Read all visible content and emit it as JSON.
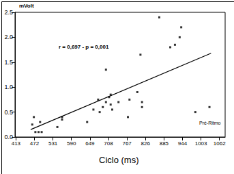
{
  "chart_data": {
    "type": "scatter",
    "ylabel": "mVolt",
    "xlabel": "Ciclo (ms)",
    "annotations": [
      "r = 0,697 - p = 0,001",
      "Pré-Ritmo"
    ],
    "xlim": [
      410,
      1080
    ],
    "xticks": [
      413,
      472,
      531,
      590,
      649,
      708,
      767,
      826,
      885,
      944,
      1003,
      1062
    ],
    "ylim": [
      0,
      2.5
    ],
    "yticks": [
      {
        "value": 0,
        "label": "0.0"
      },
      0.5,
      {
        "value": 1,
        "label": "1.0"
      },
      1.5,
      {
        "value": 2,
        "label": "2.0"
      },
      2.5
    ],
    "grid": false,
    "series": [
      {
        "type": "scatter",
        "color": "#000000",
        "marker": "square",
        "x": [
          465,
          470,
          475,
          485,
          490,
          495,
          545,
          560,
          560,
          640,
          660,
          675,
          680,
          690,
          700,
          700,
          710,
          715,
          715,
          720,
          740,
          770,
          775,
          800,
          810,
          815,
          815,
          870,
          905,
          920,
          935,
          940,
          985,
          1030
        ],
        "values": [
          0.25,
          0.4,
          0.1,
          0.1,
          0.3,
          0.1,
          0.2,
          0.4,
          0.35,
          0.3,
          0.55,
          0.75,
          0.5,
          0.6,
          0.7,
          1.35,
          0.8,
          0.85,
          0.65,
          0.55,
          0.7,
          0.4,
          0.75,
          0.9,
          1.65,
          0.6,
          0.7,
          2.4,
          1.8,
          1.85,
          2.0,
          2.2,
          0.5,
          0.6
        ]
      },
      {
        "type": "line",
        "color": "#000000",
        "line_style": "solid",
        "x": [
          460,
          1035
        ],
        "values": [
          0.15,
          1.68
        ]
      }
    ]
  }
}
